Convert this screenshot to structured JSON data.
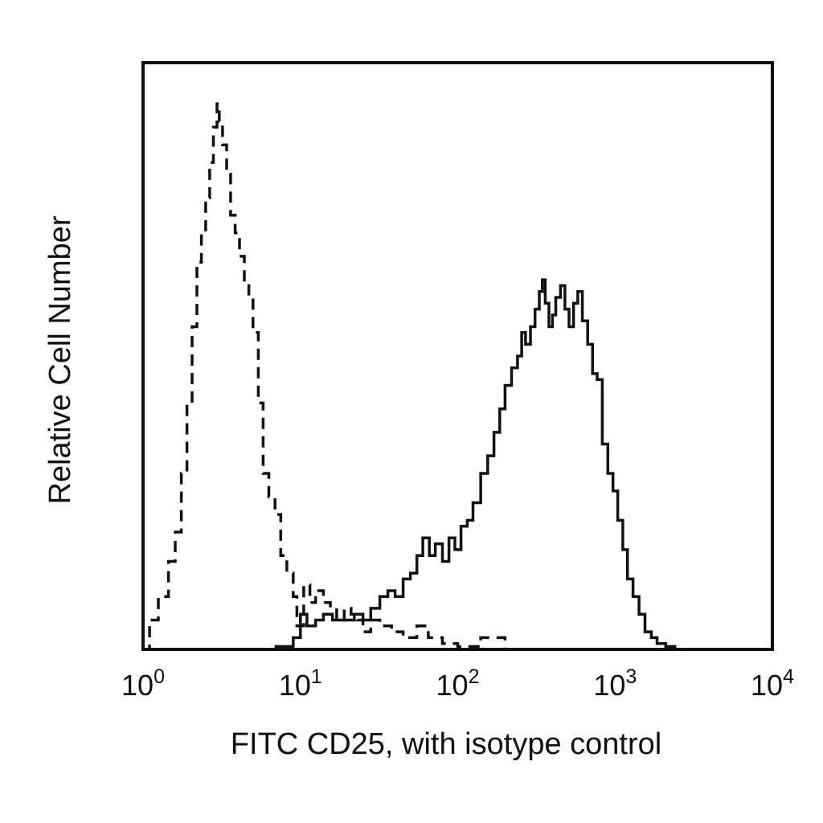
{
  "chart_data": {
    "type": "line",
    "title": "",
    "xlabel": "FITC CD25, with isotype control",
    "ylabel": "Relative Cell Number",
    "x_scale": "log",
    "xlim": [
      1,
      10000
    ],
    "ylim": [
      0,
      100
    ],
    "grid": false,
    "legend": "none",
    "x_ticks": [
      {
        "base": "10",
        "exp": "0"
      },
      {
        "base": "10",
        "exp": "1"
      },
      {
        "base": "10",
        "exp": "2"
      },
      {
        "base": "10",
        "exp": "3"
      },
      {
        "base": "10",
        "exp": "4"
      }
    ],
    "series": [
      {
        "style": "dashed",
        "color": "#111111",
        "points": [
          [
            1.0,
            0
          ],
          [
            1.1,
            5
          ],
          [
            1.25,
            9
          ],
          [
            1.45,
            15
          ],
          [
            1.6,
            20
          ],
          [
            1.75,
            30
          ],
          [
            1.9,
            42
          ],
          [
            2.05,
            55
          ],
          [
            2.2,
            66
          ],
          [
            2.35,
            71
          ],
          [
            2.5,
            77
          ],
          [
            2.65,
            83
          ],
          [
            2.8,
            89
          ],
          [
            2.95,
            93
          ],
          [
            3.05,
            90
          ],
          [
            3.2,
            86
          ],
          [
            3.4,
            81
          ],
          [
            3.6,
            74
          ],
          [
            3.85,
            71
          ],
          [
            4.1,
            67
          ],
          [
            4.4,
            62
          ],
          [
            4.7,
            60
          ],
          [
            5.0,
            54
          ],
          [
            5.4,
            42
          ],
          [
            5.8,
            30
          ],
          [
            6.3,
            26
          ],
          [
            6.9,
            23
          ],
          [
            7.5,
            16
          ],
          [
            8.2,
            13
          ],
          [
            9.0,
            9
          ],
          [
            9.5,
            4
          ],
          [
            10.5,
            11
          ],
          [
            11.5,
            8
          ],
          [
            12.5,
            10
          ],
          [
            14,
            8
          ],
          [
            15.5,
            7
          ],
          [
            17,
            5
          ],
          [
            19,
            7
          ],
          [
            21,
            6
          ],
          [
            23,
            5
          ],
          [
            25,
            3
          ],
          [
            28,
            5
          ],
          [
            32,
            4
          ],
          [
            38,
            3
          ],
          [
            45,
            2
          ],
          [
            55,
            4
          ],
          [
            65,
            2
          ],
          [
            80,
            1
          ],
          [
            100,
            0.5
          ],
          [
            140,
            2
          ],
          [
            200,
            0
          ]
        ]
      },
      {
        "style": "solid",
        "color": "#111111",
        "points": [
          [
            5,
            0
          ],
          [
            7,
            0.5
          ],
          [
            9,
            2
          ],
          [
            10,
            6
          ],
          [
            11,
            4
          ],
          [
            12.5,
            5
          ],
          [
            14,
            6
          ],
          [
            16,
            5
          ],
          [
            19,
            5
          ],
          [
            22,
            6
          ],
          [
            25,
            5
          ],
          [
            28,
            7
          ],
          [
            32,
            9
          ],
          [
            36,
            10
          ],
          [
            40,
            9
          ],
          [
            45,
            12
          ],
          [
            50,
            13
          ],
          [
            55,
            16
          ],
          [
            60,
            19
          ],
          [
            66,
            16
          ],
          [
            72,
            18
          ],
          [
            80,
            15
          ],
          [
            88,
            19
          ],
          [
            96,
            17
          ],
          [
            105,
            21
          ],
          [
            115,
            22
          ],
          [
            125,
            25
          ],
          [
            140,
            30
          ],
          [
            155,
            33
          ],
          [
            170,
            37
          ],
          [
            185,
            41
          ],
          [
            200,
            45
          ],
          [
            220,
            48
          ],
          [
            240,
            50
          ],
          [
            255,
            54
          ],
          [
            270,
            52
          ],
          [
            290,
            55
          ],
          [
            310,
            58
          ],
          [
            330,
            61
          ],
          [
            345,
            63
          ],
          [
            360,
            59
          ],
          [
            380,
            55
          ],
          [
            400,
            57
          ],
          [
            420,
            60
          ],
          [
            450,
            62
          ],
          [
            480,
            58
          ],
          [
            510,
            55
          ],
          [
            545,
            59
          ],
          [
            580,
            61
          ],
          [
            620,
            56
          ],
          [
            670,
            52
          ],
          [
            720,
            47
          ],
          [
            770,
            46
          ],
          [
            830,
            35
          ],
          [
            900,
            30
          ],
          [
            970,
            27
          ],
          [
            1040,
            22
          ],
          [
            1120,
            17
          ],
          [
            1200,
            12
          ],
          [
            1300,
            9
          ],
          [
            1420,
            6
          ],
          [
            1550,
            3
          ],
          [
            1700,
            2
          ],
          [
            1850,
            1
          ],
          [
            2100,
            0.5
          ],
          [
            2400,
            0
          ]
        ]
      }
    ]
  }
}
